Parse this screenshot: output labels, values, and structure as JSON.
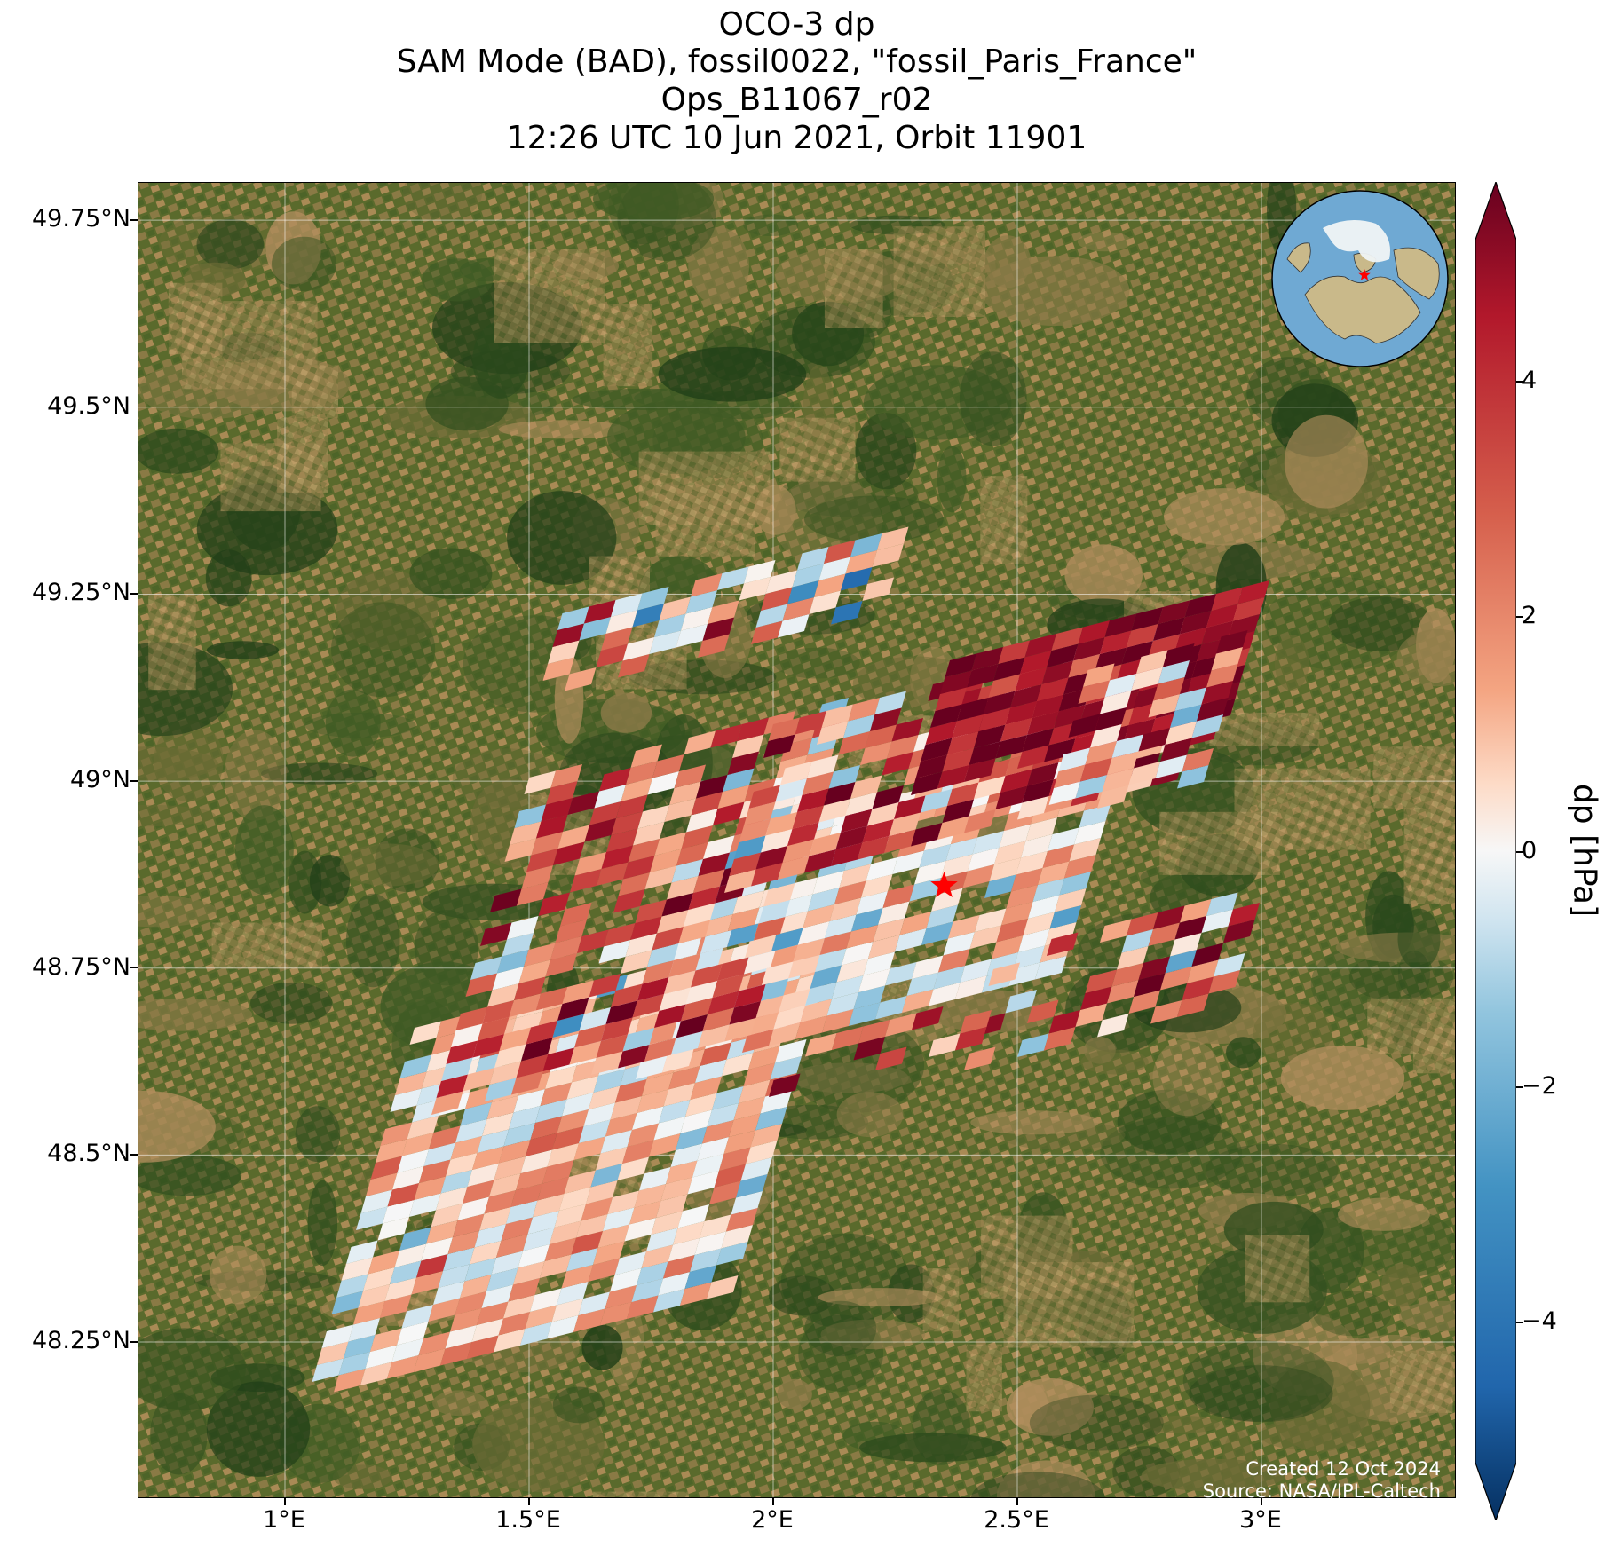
{
  "title": {
    "line1": "OCO-3 dp",
    "line2": "SAM Mode (BAD), fossil0022, \"fossil_Paris_France\"",
    "line3": "Ops_B11067_r02",
    "line4": "12:26 UTC 10 Jun 2021, Orbit 11901"
  },
  "map": {
    "lon_range": [
      0.7,
      3.4
    ],
    "lat_range": [
      48.04,
      49.8
    ],
    "y_ticks": [
      "49.75°N",
      "49.5°N",
      "49.25°N",
      "49°N",
      "48.75°N",
      "48.5°N",
      "48.25°N"
    ],
    "y_tick_values": [
      49.75,
      49.5,
      49.25,
      49.0,
      48.75,
      48.5,
      48.25
    ],
    "x_ticks": [
      "1°E",
      "1.5°E",
      "2°E",
      "2.5°E",
      "3°E"
    ],
    "x_tick_values": [
      1.0,
      1.5,
      2.0,
      2.5,
      3.0
    ],
    "target_marker": {
      "lon": 2.35,
      "lat": 48.86,
      "symbol": "star",
      "color": "#ff0000"
    },
    "basemap": "satellite imagery",
    "grid": true
  },
  "colorbar": {
    "label": "dp [hPa]",
    "ticks": [
      "4",
      "2",
      "0",
      "−2",
      "−4"
    ],
    "tick_values": [
      4,
      2,
      0,
      -2,
      -4
    ],
    "range": [
      -5.2,
      5.2
    ],
    "colormap": "RdBu_r",
    "extend": "both"
  },
  "credits": {
    "created": "Created 12 Oct 2024",
    "source": "Source: NASA/JPL-Caltech"
  },
  "inset_globe": {
    "marker_color": "#ff0000",
    "ocean_color": "#6fa9d3",
    "land_color": "#c9b98a"
  }
}
